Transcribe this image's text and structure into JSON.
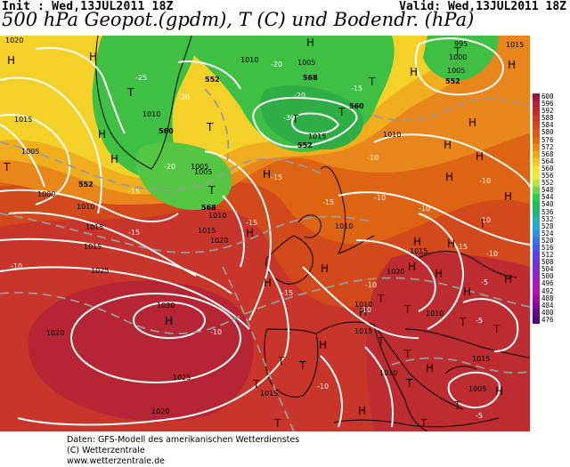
{
  "header": {
    "init": "Init : Wed,13JUL2011 18Z",
    "valid": "Valid: Wed,13JUL2011 18Z",
    "title": "500 hPa Geopot.(gpdm), T (C) und Bodendr. (hPa)"
  },
  "legend": {
    "values": [
      "600",
      "596",
      "592",
      "588",
      "584",
      "580",
      "576",
      "572",
      "568",
      "564",
      "560",
      "556",
      "552",
      "548",
      "544",
      "540",
      "536",
      "532",
      "528",
      "524",
      "520",
      "516",
      "512",
      "508",
      "504",
      "500",
      "496",
      "492",
      "488",
      "484",
      "480",
      "476"
    ],
    "colors": [
      "#a0133c",
      "#b3213a",
      "#c2282e",
      "#cc3a22",
      "#d2481a",
      "#d95a12",
      "#e06e0c",
      "#e88a10",
      "#eea818",
      "#f2c622",
      "#f5e02e",
      "#e4ef38",
      "#b8e43e",
      "#6ed44c",
      "#2ecb4a",
      "#1fbd5e",
      "#20b48c",
      "#22b2b8",
      "#27a8d8",
      "#2e90e6",
      "#3a70e8",
      "#4d55e6",
      "#6040e0",
      "#7032d6",
      "#8428cc",
      "#9820c0",
      "#a818b6",
      "#b414ac",
      "#9a10a0",
      "#7e0c92",
      "#640884",
      "#500678"
    ]
  },
  "map": {
    "highs": [
      "H",
      "H",
      "H",
      "H",
      "H",
      "H",
      "H",
      "H",
      "H",
      "H",
      "H",
      "H",
      "H",
      "H",
      "H",
      "H",
      "H",
      "H",
      "H",
      "H",
      "H",
      "H",
      "H",
      "H",
      "H",
      "H",
      "H",
      "H"
    ],
    "lows": [
      "T",
      "T",
      "T",
      "T",
      "T",
      "T",
      "T",
      "T",
      "T",
      "T",
      "T",
      "T",
      "T",
      "T",
      "T",
      "T",
      "T",
      "T",
      "T",
      "T",
      "T",
      "T"
    ],
    "isobar_labels": [
      "1020",
      "1015",
      "1000",
      "1005",
      "1010",
      "1015",
      "1010",
      "1005",
      "1010",
      "1015",
      "1025",
      "1030",
      "1020",
      "1025",
      "1020",
      "1015",
      "1020",
      "1015",
      "1010",
      "1005",
      "995",
      "1000",
      "1005",
      "1010",
      "1015",
      "1005",
      "1010",
      "1015",
      "1010",
      "1015",
      "1010",
      "1015",
      "1020",
      "1005",
      "1010",
      "1015"
    ],
    "temp_labels": [
      "-25",
      "-20",
      "-20",
      "-20",
      "-30",
      "-15",
      "-20",
      "-15",
      "-15",
      "-10",
      "-15",
      "-10",
      "-15",
      "-10",
      "-10",
      "-15",
      "-10",
      "-5",
      "-10",
      "-10",
      "-10",
      "-5",
      "-10",
      "-15",
      "-15",
      "-10",
      "-5",
      "-10"
    ],
    "box_labels": [
      "552",
      "552",
      "552",
      "552",
      "568",
      "568",
      "560",
      "560"
    ]
  },
  "footer": {
    "line1": "Daten: GFS-Modell des amerikanischen Wetterdienstes",
    "line2": "(C) Wetterzentrale",
    "line3": "www.wetterzentrale.de"
  }
}
